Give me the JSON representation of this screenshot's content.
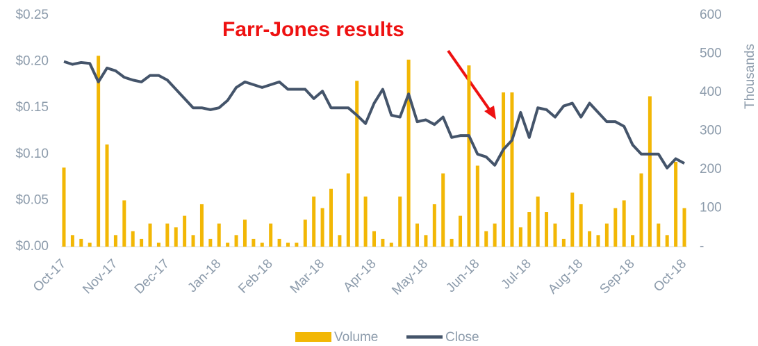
{
  "chart_data": {
    "type": "combo",
    "annotation": "Farr-Jones results",
    "y2_label": "Thousands",
    "categories": [
      "Oct-17",
      null,
      null,
      null,
      null,
      null,
      "Nov-17",
      null,
      null,
      null,
      null,
      null,
      "Dec-17",
      null,
      null,
      null,
      null,
      null,
      "Jan-18",
      null,
      null,
      null,
      null,
      null,
      "Feb-18",
      null,
      null,
      null,
      null,
      null,
      "Mar-18",
      null,
      null,
      null,
      null,
      null,
      "Apr-18",
      null,
      null,
      null,
      null,
      null,
      "May-18",
      null,
      null,
      null,
      null,
      null,
      "Jun-18",
      null,
      null,
      null,
      null,
      null,
      "Jul-18",
      null,
      null,
      null,
      null,
      null,
      "Aug-18",
      null,
      null,
      null,
      null,
      null,
      "Sep-18",
      null,
      null,
      null,
      null,
      null,
      "Oct-18"
    ],
    "series": [
      {
        "name": "Volume",
        "type": "bar",
        "axis": "y2",
        "color": "#f2b705",
        "values": [
          205,
          30,
          20,
          10,
          495,
          265,
          30,
          120,
          40,
          20,
          60,
          10,
          60,
          50,
          80,
          30,
          110,
          20,
          60,
          10,
          30,
          70,
          20,
          10,
          60,
          20,
          10,
          10,
          70,
          130,
          100,
          150,
          30,
          190,
          430,
          130,
          40,
          20,
          10,
          130,
          485,
          60,
          30,
          110,
          190,
          20,
          80,
          470,
          210,
          40,
          60,
          400,
          400,
          50,
          90,
          130,
          90,
          60,
          20,
          140,
          110,
          40,
          30,
          60,
          100,
          120,
          30,
          190,
          390,
          60,
          30,
          220,
          100
        ]
      },
      {
        "name": "Close",
        "type": "line",
        "color": "#44546a",
        "values": [
          0.2,
          0.197,
          0.199,
          0.198,
          0.178,
          0.193,
          0.19,
          0.183,
          0.18,
          0.178,
          0.185,
          0.185,
          0.18,
          0.17,
          0.16,
          0.15,
          0.15,
          0.148,
          0.15,
          0.158,
          0.172,
          0.178,
          0.175,
          0.172,
          0.175,
          0.178,
          0.17,
          0.17,
          0.17,
          0.16,
          0.168,
          0.15,
          0.15,
          0.15,
          0.142,
          0.133,
          0.155,
          0.17,
          0.142,
          0.14,
          0.165,
          0.135,
          0.137,
          0.132,
          0.14,
          0.118,
          0.12,
          0.12,
          0.1,
          0.097,
          0.088,
          0.105,
          0.115,
          0.145,
          0.118,
          0.15,
          0.148,
          0.14,
          0.152,
          0.155,
          0.14,
          0.155,
          0.145,
          0.135,
          0.135,
          0.13,
          0.11,
          0.1,
          0.1,
          0.1,
          0.085,
          0.095,
          0.09
        ]
      }
    ],
    "ylim": [
      0,
      0.25
    ],
    "yticks": [
      {
        "value": 0,
        "label": "$0.00"
      },
      {
        "value": 0.05,
        "label": "$0.05"
      },
      {
        "value": 0.1,
        "label": "$0.10"
      },
      {
        "value": 0.15,
        "label": "$0.15"
      },
      {
        "value": 0.2,
        "label": "$0.20"
      },
      {
        "value": 0.25,
        "label": "$0.25"
      }
    ],
    "y2lim": [
      0,
      600
    ],
    "y2ticks": [
      {
        "value": 0,
        "label": "-"
      },
      100,
      200,
      300,
      400,
      500,
      600
    ],
    "legend": "bottom"
  }
}
